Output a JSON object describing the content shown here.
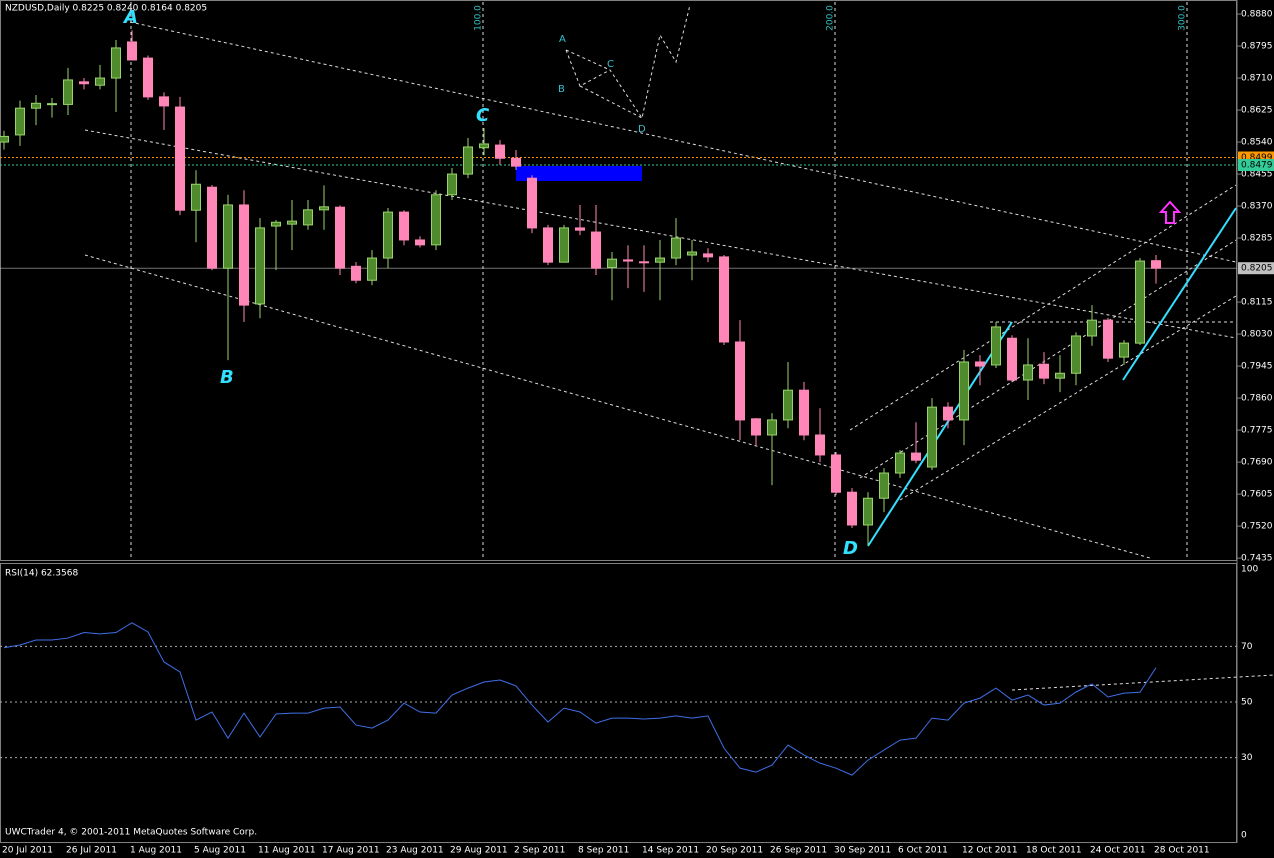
{
  "chart_data": [
    {
      "type": "candlestick",
      "title": "NZDUSD,Daily 0.8225 0.8240 0.8164 0.8205",
      "categories": [
        "20 Jul 2011",
        null,
        null,
        null,
        "26 Jul 2011",
        null,
        null,
        null,
        "1 Aug 2011",
        null,
        null,
        null,
        "5 Aug 2011",
        null,
        null,
        null,
        "11 Aug 2011",
        null,
        null,
        null,
        "17 Aug 2011",
        null,
        null,
        null,
        "23 Aug 2011",
        null,
        null,
        null,
        "29 Aug 2011",
        null,
        null,
        null,
        "2 Sep 2011",
        null,
        null,
        null,
        "8 Sep 2011",
        null,
        null,
        null,
        "14 Sep 2011",
        null,
        null,
        null,
        "20 Sep 2011",
        null,
        null,
        null,
        "26 Sep 2011",
        null,
        null,
        null,
        "30 Sep 2011",
        null,
        null,
        null,
        "6 Oct 2011",
        null,
        null,
        null,
        "12 Oct 2011",
        null,
        null,
        null,
        "18 Oct 2011",
        null,
        null,
        null,
        "24 Oct 2011",
        null,
        null,
        null,
        "28 Oct 2011"
      ],
      "open": [
        0.854,
        0.8559,
        0.863,
        0.864,
        0.864,
        0.87,
        0.8691,
        0.871,
        0.8806,
        0.8763,
        0.866,
        0.8633,
        0.8359,
        0.842,
        0.8205,
        0.8373,
        0.811,
        0.8317,
        0.8322,
        0.832,
        0.836,
        0.8367,
        0.821,
        0.8173,
        0.8232,
        0.8354,
        0.828,
        0.8267,
        0.84,
        0.8455,
        0.8525,
        0.8532,
        0.8497,
        0.8444,
        0.8312,
        0.8221,
        0.8312,
        0.8301,
        0.8207,
        0.8227,
        0.8222,
        0.8221,
        0.8232,
        0.824,
        0.8243,
        0.8235,
        0.8009,
        0.7805,
        0.7762,
        0.7802,
        0.7881,
        0.7762,
        0.7709,
        0.761,
        0.7523,
        0.7594,
        0.7661,
        0.7714,
        0.7677,
        0.7836,
        0.7802,
        0.7956,
        0.7948,
        0.8019,
        0.7908,
        0.795,
        0.7913,
        0.7926,
        0.8025,
        0.8067,
        0.7969,
        0.8006,
        0.8225
      ],
      "high": [
        0.857,
        0.865,
        0.8665,
        0.8657,
        0.8737,
        0.871,
        0.8745,
        0.8811,
        0.8837,
        0.877,
        0.8672,
        0.866,
        0.8465,
        0.8426,
        0.84,
        0.8412,
        0.8338,
        0.8333,
        0.8386,
        0.8386,
        0.8425,
        0.8372,
        0.8221,
        0.8253,
        0.8365,
        0.8359,
        0.829,
        0.8412,
        0.8471,
        0.8551,
        0.8577,
        0.8545,
        0.8519,
        0.8452,
        0.832,
        0.832,
        0.8373,
        0.8373,
        0.8248,
        0.8266,
        0.8266,
        0.828,
        0.8338,
        0.828,
        0.8258,
        0.824,
        0.8067,
        0.7807,
        0.782,
        0.7956,
        0.7903,
        0.7833,
        0.7717,
        0.7621,
        0.761,
        0.7674,
        0.7722,
        0.7796,
        0.786,
        0.7849,
        0.7988,
        0.7974,
        0.8062,
        0.8027,
        0.8019,
        0.7982,
        0.7974,
        0.8035,
        0.8107,
        0.8073,
        0.8014,
        0.8232,
        0.824
      ],
      "low": [
        0.852,
        0.853,
        0.8585,
        0.8605,
        0.8612,
        0.868,
        0.868,
        0.862,
        0.876,
        0.8652,
        0.8572,
        0.8346,
        0.8274,
        0.82,
        0.7961,
        0.8062,
        0.8072,
        0.82,
        0.8253,
        0.8307,
        0.8307,
        0.8187,
        0.8165,
        0.816,
        0.8205,
        0.8266,
        0.826,
        0.8253,
        0.8386,
        0.8444,
        0.8505,
        0.8479,
        0.8466,
        0.8298,
        0.8213,
        0.8221,
        0.8293,
        0.8187,
        0.812,
        0.8152,
        0.8142,
        0.812,
        0.8213,
        0.8173,
        0.8221,
        0.8001,
        0.7748,
        0.7735,
        0.7629,
        0.778,
        0.7748,
        0.769,
        0.7602,
        0.7515,
        0.7469,
        0.7557,
        0.7648,
        0.7687,
        0.7669,
        0.778,
        0.7735,
        0.7894,
        0.794,
        0.7902,
        0.7855,
        0.7897,
        0.7876,
        0.7894,
        0.7999,
        0.7956,
        0.7948,
        0.8001,
        0.8164
      ],
      "close": [
        0.8555,
        0.863,
        0.8643,
        0.8642,
        0.8705,
        0.8695,
        0.871,
        0.879,
        0.8758,
        0.866,
        0.8636,
        0.8359,
        0.8428,
        0.8205,
        0.8373,
        0.8107,
        0.8312,
        0.8327,
        0.833,
        0.836,
        0.8368,
        0.8205,
        0.8173,
        0.8232,
        0.8354,
        0.828,
        0.8267,
        0.84,
        0.8455,
        0.8527,
        0.8535,
        0.8497,
        0.8476,
        0.8312,
        0.8221,
        0.8312,
        0.8306,
        0.8205,
        0.8229,
        0.8224,
        0.822,
        0.8232,
        0.8285,
        0.8248,
        0.8235,
        0.8009,
        0.7802,
        0.7762,
        0.7802,
        0.7881,
        0.7762,
        0.7709,
        0.761,
        0.7523,
        0.7594,
        0.7661,
        0.7714,
        0.7695,
        0.7836,
        0.7802,
        0.7956,
        0.7945,
        0.8049,
        0.7908,
        0.7948,
        0.7913,
        0.7926,
        0.8025,
        0.8067,
        0.7966,
        0.8006,
        0.8224,
        0.8205
      ],
      "up_color": "#4f8a2c",
      "up_edge": "#9ad46a",
      "down_color": "#ff86b6",
      "ylim": [
        0.743,
        0.8912
      ],
      "yticks": [
        {
          "value": 0.888,
          "label": "0.8880"
        },
        {
          "value": 0.8795,
          "label": "0.8795"
        },
        {
          "value": 0.871,
          "label": "0.8710"
        },
        {
          "value": 0.8625,
          "label": "0.8625"
        },
        {
          "value": 0.854,
          "label": "0.8540"
        },
        {
          "value": 0.8455,
          "label": "0.8455"
        },
        {
          "value": 0.837,
          "label": "0.8370"
        },
        {
          "value": 0.8285,
          "label": "0.8285"
        },
        {
          "value": 0.8115,
          "label": "0.8115"
        },
        {
          "value": 0.803,
          "label": "0.8030"
        },
        {
          "value": 0.7945,
          "label": "0.7945"
        },
        {
          "value": 0.786,
          "label": "0.7860"
        },
        {
          "value": 0.7775,
          "label": "0.7775"
        },
        {
          "value": 0.769,
          "label": "0.7690"
        },
        {
          "value": 0.7605,
          "label": "0.7605"
        },
        {
          "value": 0.752,
          "label": "0.7520"
        },
        {
          "value": 0.7435,
          "label": "0.7435"
        }
      ],
      "price_markers": [
        {
          "value": 0.8499,
          "label": "0.8499",
          "color": "#ff9900"
        },
        {
          "value": 0.8479,
          "label": "0.8479",
          "color": "#33cc99"
        },
        {
          "value": 0.8205,
          "label": "0.8205",
          "color": "#c0c0c0"
        }
      ],
      "annotations": [
        "A",
        "B",
        "C",
        "D"
      ],
      "pattern_labels": [
        "A",
        "B",
        "C",
        "D"
      ],
      "time_labels": [
        "100.0",
        "200.0",
        "300.0"
      ]
    },
    {
      "type": "line",
      "title": "RSI(14) 62.3568",
      "values": [
        69.5,
        70.5,
        72.3,
        72.3,
        73,
        75,
        74.5,
        75,
        78.5,
        75.2,
        64.4,
        60.8,
        43.5,
        46.4,
        37,
        46,
        37.4,
        45.7,
        46,
        46,
        47.8,
        48.2,
        41.7,
        40.6,
        43.5,
        49.6,
        46.4,
        46,
        52.5,
        55,
        57.2,
        57.9,
        55.8,
        48.9,
        42.8,
        47.8,
        46.4,
        42.4,
        44.2,
        44.2,
        43.9,
        44.2,
        45,
        44.2,
        45,
        33.4,
        26.2,
        24.8,
        27.3,
        34.5,
        30.9,
        28,
        26.2,
        23.7,
        29.1,
        32.7,
        36.3,
        37,
        44.2,
        43.5,
        49.6,
        51.4,
        55,
        50.7,
        52.5,
        48.9,
        49.6,
        53.6,
        56.5,
        51.8,
        53.2,
        53.5,
        62.3568
      ],
      "color": "#3f6fe6",
      "ylim": [
        0,
        100
      ],
      "yticks": [
        100,
        70,
        50,
        30,
        0
      ]
    }
  ],
  "footer": "UWCTrader 4, © 2001-2011 MetaQuotes Software Corp."
}
